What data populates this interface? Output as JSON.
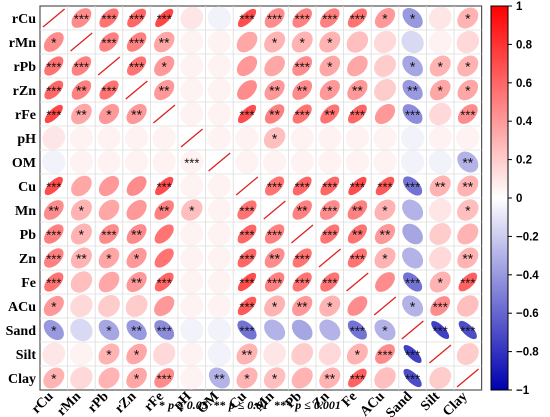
{
  "chart_data": {
    "type": "heatmap",
    "variables": [
      "rCu",
      "rMn",
      "rPb",
      "rZn",
      "rFe",
      "pH",
      "OM",
      "Cu",
      "Mn",
      "Pb",
      "Zn",
      "Fe",
      "ACu",
      "Sand",
      "Silt",
      "Clay"
    ],
    "values": [
      [
        1.0,
        0.45,
        0.55,
        0.6,
        0.72,
        0.1,
        -0.05,
        0.7,
        0.45,
        0.5,
        0.5,
        0.55,
        0.4,
        -0.4,
        0.1,
        0.3
      ],
      [
        0.45,
        1.0,
        0.5,
        0.5,
        0.35,
        0.05,
        0.05,
        0.35,
        0.3,
        0.3,
        0.3,
        0.25,
        0.15,
        -0.15,
        0.05,
        0.15
      ],
      [
        0.55,
        0.5,
        1.0,
        0.55,
        0.4,
        0.05,
        0.05,
        0.4,
        0.35,
        0.45,
        0.35,
        0.35,
        0.2,
        -0.35,
        0.3,
        0.3
      ],
      [
        0.6,
        0.5,
        0.55,
        1.0,
        0.4,
        0.05,
        0.05,
        0.45,
        0.4,
        0.45,
        0.4,
        0.4,
        0.2,
        -0.4,
        0.35,
        0.35
      ],
      [
        0.72,
        0.35,
        0.4,
        0.4,
        1.0,
        0.05,
        0.05,
        0.7,
        0.5,
        0.55,
        0.55,
        0.6,
        0.4,
        -0.45,
        0.15,
        0.45
      ],
      [
        0.1,
        0.05,
        0.05,
        0.05,
        0.05,
        1.0,
        0.05,
        0.05,
        0.25,
        0.05,
        0.05,
        0.05,
        0.05,
        -0.05,
        0.05,
        0.05
      ],
      [
        -0.05,
        0.05,
        0.05,
        0.05,
        0.05,
        0.05,
        1.0,
        0.05,
        0.05,
        0.05,
        0.05,
        0.05,
        0.05,
        -0.05,
        -0.05,
        -0.3
      ],
      [
        0.7,
        0.35,
        0.4,
        0.45,
        0.7,
        0.05,
        0.05,
        1.0,
        0.55,
        0.6,
        0.6,
        0.7,
        0.65,
        -0.55,
        0.3,
        0.3
      ],
      [
        0.45,
        0.3,
        0.35,
        0.4,
        0.5,
        0.25,
        0.05,
        0.55,
        1.0,
        0.5,
        0.45,
        0.5,
        0.3,
        -0.3,
        0.1,
        0.25
      ],
      [
        0.5,
        0.3,
        0.45,
        0.45,
        0.55,
        0.05,
        0.05,
        0.6,
        0.5,
        1.0,
        0.55,
        0.55,
        0.4,
        -0.35,
        0.2,
        0.3
      ],
      [
        0.5,
        0.3,
        0.35,
        0.4,
        0.55,
        0.05,
        0.05,
        0.6,
        0.45,
        0.55,
        1.0,
        0.55,
        0.3,
        -0.3,
        0.15,
        0.3
      ],
      [
        0.55,
        0.25,
        0.35,
        0.4,
        0.6,
        0.05,
        0.05,
        0.7,
        0.5,
        0.55,
        0.55,
        1.0,
        0.45,
        -0.55,
        0.3,
        0.62
      ],
      [
        0.4,
        0.15,
        0.2,
        0.2,
        0.4,
        0.05,
        0.05,
        0.65,
        0.3,
        0.4,
        0.3,
        0.45,
        1.0,
        -0.3,
        0.45,
        0.25
      ],
      [
        -0.4,
        -0.15,
        -0.35,
        -0.4,
        -0.45,
        -0.05,
        -0.05,
        -0.55,
        -0.3,
        -0.35,
        -0.3,
        -0.55,
        -0.3,
        1.0,
        -0.75,
        -0.7
      ],
      [
        0.1,
        0.05,
        0.3,
        0.35,
        0.15,
        0.05,
        -0.05,
        0.3,
        0.1,
        0.2,
        0.15,
        0.3,
        0.45,
        -0.75,
        1.0,
        0.2
      ],
      [
        0.3,
        0.15,
        0.3,
        0.35,
        0.45,
        0.05,
        -0.3,
        0.3,
        0.25,
        0.3,
        0.3,
        0.62,
        0.25,
        -0.7,
        0.2,
        1.0
      ]
    ],
    "stars": [
      [
        "",
        "***",
        "***",
        "***",
        "***",
        "",
        "",
        "***",
        "***",
        "***",
        "***",
        "***",
        "*",
        "*",
        "",
        "*"
      ],
      [
        "*",
        "",
        "***",
        "***",
        "**",
        "",
        "",
        "",
        "*",
        "*",
        "*",
        "",
        "",
        "",
        "",
        ""
      ],
      [
        "***",
        "***",
        "",
        "***",
        "*",
        "",
        "",
        "",
        "",
        "***",
        "*",
        "",
        "",
        "*",
        "*",
        "*"
      ],
      [
        "***",
        "**",
        "***",
        "",
        "**",
        "",
        "",
        "",
        "**",
        "**",
        "*",
        "**",
        "",
        "**",
        "*",
        "*"
      ],
      [
        "***",
        "**",
        "*",
        "**",
        "",
        "",
        "",
        "***",
        "**",
        "***",
        "**",
        "***",
        "",
        "***",
        "",
        "***"
      ],
      [
        "",
        "",
        "",
        "",
        "",
        "",
        "",
        "",
        "*",
        "",
        "",
        "",
        "",
        "",
        "",
        ""
      ],
      [
        "",
        "",
        "",
        "",
        "",
        "***",
        "",
        "",
        "",
        "",
        "",
        "",
        "",
        "",
        "",
        "**"
      ],
      [
        "***",
        "",
        "",
        "",
        "***",
        "",
        "",
        "",
        "***",
        "***",
        "***",
        "***",
        "***",
        "***",
        "**",
        "**"
      ],
      [
        "**",
        "*",
        "",
        "",
        "**",
        "*",
        "",
        "***",
        "",
        "**",
        "***",
        "**",
        "*",
        "",
        "",
        "*"
      ],
      [
        "***",
        "*",
        "***",
        "**",
        "",
        "",
        "",
        "***",
        "***",
        "",
        "***",
        "**",
        "**",
        "",
        "",
        ""
      ],
      [
        "***",
        "**",
        "*",
        "*",
        "",
        "",
        "",
        "***",
        "**",
        "***",
        "",
        "***",
        "*",
        "",
        "",
        "**"
      ],
      [
        "***",
        "",
        "",
        "**",
        "***",
        "",
        "",
        "***",
        "***",
        "***",
        "***",
        "",
        "",
        "***",
        "*",
        "***"
      ],
      [
        "*",
        "",
        "",
        "",
        "",
        "",
        "",
        "***",
        "*",
        "**",
        "*",
        "",
        "",
        "*",
        "***",
        ""
      ],
      [
        "*",
        "",
        "*",
        "**",
        "***",
        "",
        "",
        "***",
        "",
        "",
        "",
        "***",
        "*",
        "",
        "***",
        "***"
      ],
      [
        "",
        "",
        "*",
        "*",
        "",
        "",
        "",
        "**",
        "",
        "",
        "",
        "*",
        "***",
        "***",
        "",
        ""
      ],
      [
        "*",
        "",
        "",
        "*",
        "***",
        "",
        "**",
        "*",
        "*",
        "",
        "**",
        "***",
        "",
        "***",
        "",
        ""
      ]
    ],
    "colorbar": {
      "range": [
        -1,
        1
      ],
      "ticks": [
        "1",
        "0.8",
        "0.6",
        "0.4",
        "0.2",
        "0",
        "−0.2",
        "−0.4",
        "−0.6",
        "−0.8",
        "−1"
      ],
      "positive_color": "#ff0000",
      "negative_color": "#0000b0",
      "zero_color": "#ffffff"
    }
  },
  "legend": {
    "star1": "*",
    "star1_text": "p ≤ 0.05",
    "star2": "**",
    "star2_text": "p ≤ 0.01",
    "star3": "***",
    "star3_text": "p ≤ 0.001"
  }
}
